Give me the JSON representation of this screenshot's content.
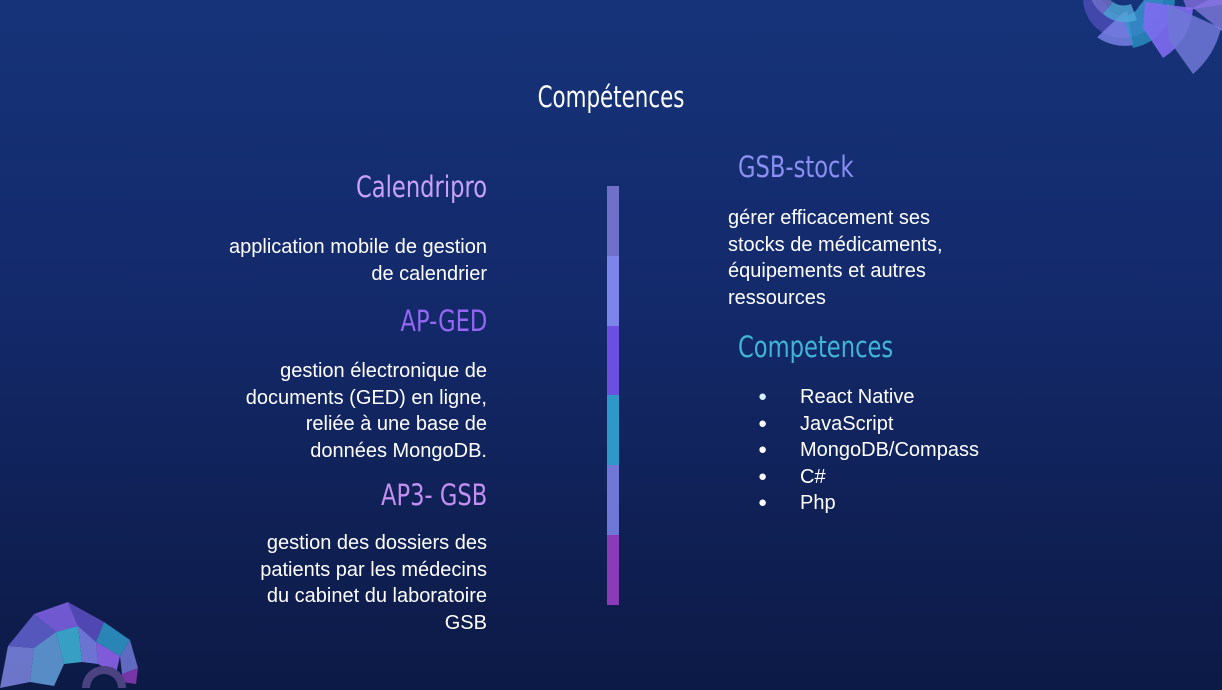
{
  "slide": {
    "title": "Compétences"
  },
  "left_projects": [
    {
      "name": "Calendripro",
      "name_color": "#c9a2f7",
      "description_lines": [
        "application mobile de gestion",
        "de calendrier"
      ]
    },
    {
      "name": "AP-GED",
      "name_color": "#9466f3",
      "description_lines": [
        "gestion électronique de",
        "documents (GED) en ligne,",
        "reliée à une base de",
        "données MongoDB."
      ]
    },
    {
      "name": "AP3- GSB",
      "name_color": "#c28ef0",
      "description_lines": [
        "gestion des dossiers des",
        "patients par les médecins",
        "du cabinet du laboratoire",
        "GSB"
      ]
    }
  ],
  "right_project": {
    "name": "GSB-stock",
    "name_color": "#8b8ff2",
    "description_lines": [
      "gérer efficacement ses",
      "stocks de médicaments,",
      "équipements et autres",
      "ressources"
    ]
  },
  "skills": {
    "heading": "Competences",
    "heading_color": "#3fb6d8",
    "items": [
      "React Native",
      "JavaScript",
      "MongoDB/Compass",
      "C#",
      "Php"
    ]
  },
  "timeline_colors": [
    "#6f71c9",
    "#7d84ea",
    "#6b4fe0",
    "#2e98c9",
    "#6f78d6",
    "#8a3bb8"
  ]
}
